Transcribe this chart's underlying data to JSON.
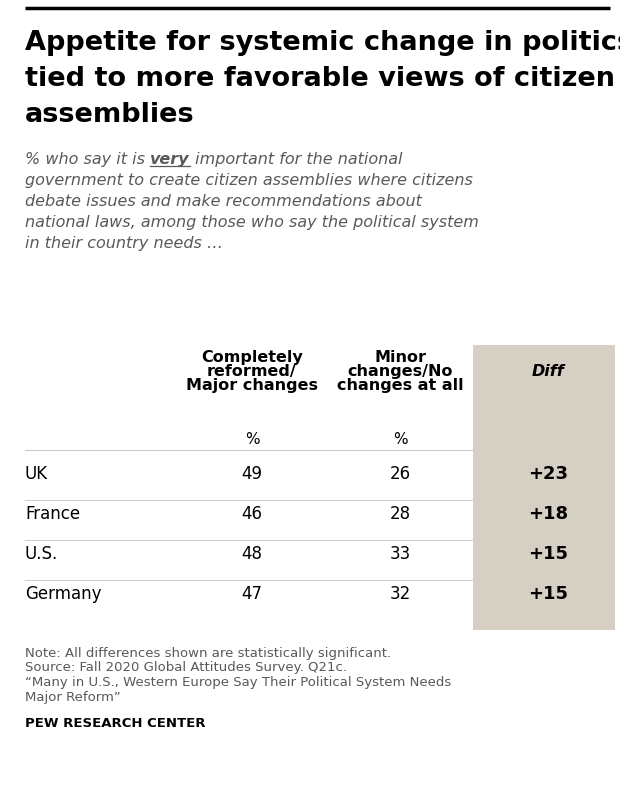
{
  "title_line1": "Appetite for systemic change in politics",
  "title_line2": "tied to more favorable views of citizen",
  "title_line3": "assemblies",
  "subtitle_pre": "% who say it is ",
  "subtitle_very": "very",
  "subtitle_post_lines": [
    " important for the national",
    "government to create citizen assemblies where citizens",
    "debate issues and make recommendations about",
    "national laws, among those who say the political system",
    "in their country needs …"
  ],
  "col1_header_lines": [
    "Completely",
    "reformed/",
    "Major changes"
  ],
  "col2_header_lines": [
    "Minor",
    "changes/No",
    "changes at all"
  ],
  "col3_header": "Diff",
  "countries": [
    "UK",
    "France",
    "U.S.",
    "Germany"
  ],
  "col1_values": [
    49,
    46,
    48,
    47
  ],
  "col2_values": [
    26,
    28,
    33,
    32
  ],
  "diff_values": [
    "+23",
    "+18",
    "+15",
    "+15"
  ],
  "note_lines": [
    "Note: All differences shown are statistically significant.",
    "Source: Fall 2020 Global Attitudes Survey. Q21c.",
    "“Many in U.S., Western Europe Say Their Political System Needs",
    "Major Reform”"
  ],
  "source_label": "PEW RESEARCH CENTER",
  "bg_color": "#ffffff",
  "diff_bg_color": "#d5cfc4",
  "title_color": "#000000",
  "subtitle_color": "#595959",
  "table_text_color": "#000000",
  "note_color": "#595959",
  "header_color": "#000000",
  "line_color": "#cccccc",
  "top_border_color": "#000000"
}
